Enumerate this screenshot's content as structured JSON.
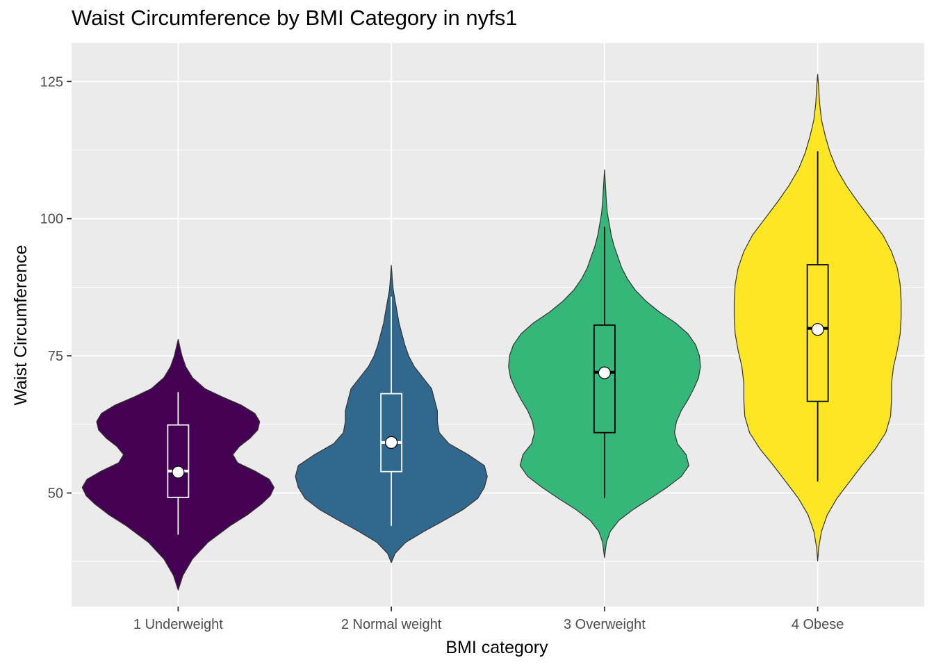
{
  "chart_data": {
    "type": "violin",
    "title": "Waist Circumference by BMI Category in nyfs1",
    "xlabel": "BMI category",
    "ylabel": "Waist Circumference",
    "categories": [
      "1 Underweight",
      "2 Normal weight",
      "3 Overweight",
      "4 Obese"
    ],
    "ylim": [
      29.3,
      132.0
    ],
    "yticks": [
      50,
      75,
      100,
      125
    ],
    "grid": true,
    "colors": [
      "#440154",
      "#31688E",
      "#35B779",
      "#FDE725"
    ],
    "box_line_colors": [
      "#ffffff",
      "#ffffff",
      "#000000",
      "#000000"
    ],
    "background": "#EBEBEB",
    "violins": [
      {
        "name": "1 Underweight",
        "min": 32.3,
        "max": 78.0,
        "profile": [
          [
            32.3,
            0.0
          ],
          [
            35,
            0.05
          ],
          [
            38,
            0.15
          ],
          [
            41,
            0.31
          ],
          [
            44,
            0.54
          ],
          [
            46,
            0.72
          ],
          [
            48,
            0.87
          ],
          [
            49.5,
            0.96
          ],
          [
            51,
            1.0
          ],
          [
            52.5,
            0.95
          ],
          [
            54,
            0.8
          ],
          [
            55.5,
            0.62
          ],
          [
            57,
            0.57
          ],
          [
            58.5,
            0.64
          ],
          [
            60,
            0.75
          ],
          [
            61.5,
            0.83
          ],
          [
            63,
            0.85
          ],
          [
            64.5,
            0.8
          ],
          [
            66,
            0.66
          ],
          [
            67.5,
            0.46
          ],
          [
            69,
            0.28
          ],
          [
            71,
            0.15
          ],
          [
            73,
            0.08
          ],
          [
            75,
            0.04
          ],
          [
            76.5,
            0.02
          ],
          [
            78,
            0.0
          ]
        ]
      },
      {
        "name": "2 Normal weight",
        "min": 37.3,
        "max": 91.5,
        "profile": [
          [
            37.3,
            0.0
          ],
          [
            39,
            0.04
          ],
          [
            41,
            0.15
          ],
          [
            43,
            0.34
          ],
          [
            45,
            0.55
          ],
          [
            47,
            0.75
          ],
          [
            49,
            0.9
          ],
          [
            51,
            0.97
          ],
          [
            53,
            1.0
          ],
          [
            55,
            0.97
          ],
          [
            57,
            0.8
          ],
          [
            59,
            0.6
          ],
          [
            61,
            0.5
          ],
          [
            63,
            0.48
          ],
          [
            65,
            0.48
          ],
          [
            67,
            0.45
          ],
          [
            69,
            0.42
          ],
          [
            71,
            0.33
          ],
          [
            73,
            0.24
          ],
          [
            75,
            0.18
          ],
          [
            77,
            0.14
          ],
          [
            79,
            0.11
          ],
          [
            81,
            0.08
          ],
          [
            83,
            0.06
          ],
          [
            85,
            0.04
          ],
          [
            87,
            0.02
          ],
          [
            89,
            0.01
          ],
          [
            91.5,
            0.0
          ]
        ]
      },
      {
        "name": "3 Overweight",
        "min": 38.2,
        "max": 108.9,
        "profile": [
          [
            38.2,
            0.0
          ],
          [
            41,
            0.02
          ],
          [
            43,
            0.06
          ],
          [
            45,
            0.15
          ],
          [
            47,
            0.3
          ],
          [
            49,
            0.48
          ],
          [
            51,
            0.65
          ],
          [
            53,
            0.8
          ],
          [
            55,
            0.88
          ],
          [
            57,
            0.85
          ],
          [
            59,
            0.76
          ],
          [
            61,
            0.73
          ],
          [
            63,
            0.75
          ],
          [
            65,
            0.8
          ],
          [
            67,
            0.87
          ],
          [
            69,
            0.93
          ],
          [
            71,
            0.98
          ],
          [
            73,
            1.0
          ],
          [
            75,
            0.99
          ],
          [
            77,
            0.95
          ],
          [
            79,
            0.87
          ],
          [
            81,
            0.74
          ],
          [
            83,
            0.57
          ],
          [
            85,
            0.43
          ],
          [
            87,
            0.32
          ],
          [
            89,
            0.24
          ],
          [
            91,
            0.18
          ],
          [
            93,
            0.14
          ],
          [
            95,
            0.1
          ],
          [
            97,
            0.07
          ],
          [
            99,
            0.05
          ],
          [
            101,
            0.03
          ],
          [
            103,
            0.02
          ],
          [
            106,
            0.01
          ],
          [
            108.9,
            0.0
          ]
        ]
      },
      {
        "name": "4 Obese",
        "min": 37.6,
        "max": 126.3,
        "profile": [
          [
            37.6,
            0.0
          ],
          [
            40,
            0.01
          ],
          [
            43,
            0.04
          ],
          [
            46,
            0.1
          ],
          [
            49,
            0.2
          ],
          [
            52,
            0.33
          ],
          [
            55,
            0.46
          ],
          [
            58,
            0.6
          ],
          [
            61,
            0.71
          ],
          [
            64,
            0.76
          ],
          [
            67,
            0.77
          ],
          [
            70,
            0.77
          ],
          [
            73,
            0.79
          ],
          [
            76,
            0.83
          ],
          [
            79,
            0.86
          ],
          [
            82,
            0.87
          ],
          [
            85,
            0.87
          ],
          [
            88,
            0.86
          ],
          [
            91,
            0.83
          ],
          [
            94,
            0.77
          ],
          [
            97,
            0.68
          ],
          [
            100,
            0.55
          ],
          [
            103,
            0.42
          ],
          [
            106,
            0.3
          ],
          [
            109,
            0.2
          ],
          [
            112,
            0.13
          ],
          [
            115,
            0.08
          ],
          [
            118,
            0.04
          ],
          [
            121,
            0.02
          ],
          [
            124,
            0.01
          ],
          [
            126.3,
            0.0
          ]
        ]
      }
    ],
    "boxes": [
      {
        "name": "1 Underweight",
        "whisker_low": 42.4,
        "q1": 49.2,
        "median": 54.0,
        "q3": 62.4,
        "whisker_high": 68.4,
        "mean": 53.8
      },
      {
        "name": "2 Normal weight",
        "whisker_low": 44.0,
        "q1": 53.9,
        "median": 59.2,
        "q3": 68.1,
        "whisker_high": 85.8,
        "mean": 59.2
      },
      {
        "name": "3 Overweight",
        "whisker_low": 49.1,
        "q1": 61.0,
        "median": 72.0,
        "q3": 80.6,
        "whisker_high": 98.5,
        "mean": 71.9
      },
      {
        "name": "4 Obese",
        "whisker_low": 52.1,
        "q1": 66.7,
        "median": 80.0,
        "q3": 91.6,
        "whisker_high": 112.3,
        "mean": 79.8
      }
    ]
  }
}
